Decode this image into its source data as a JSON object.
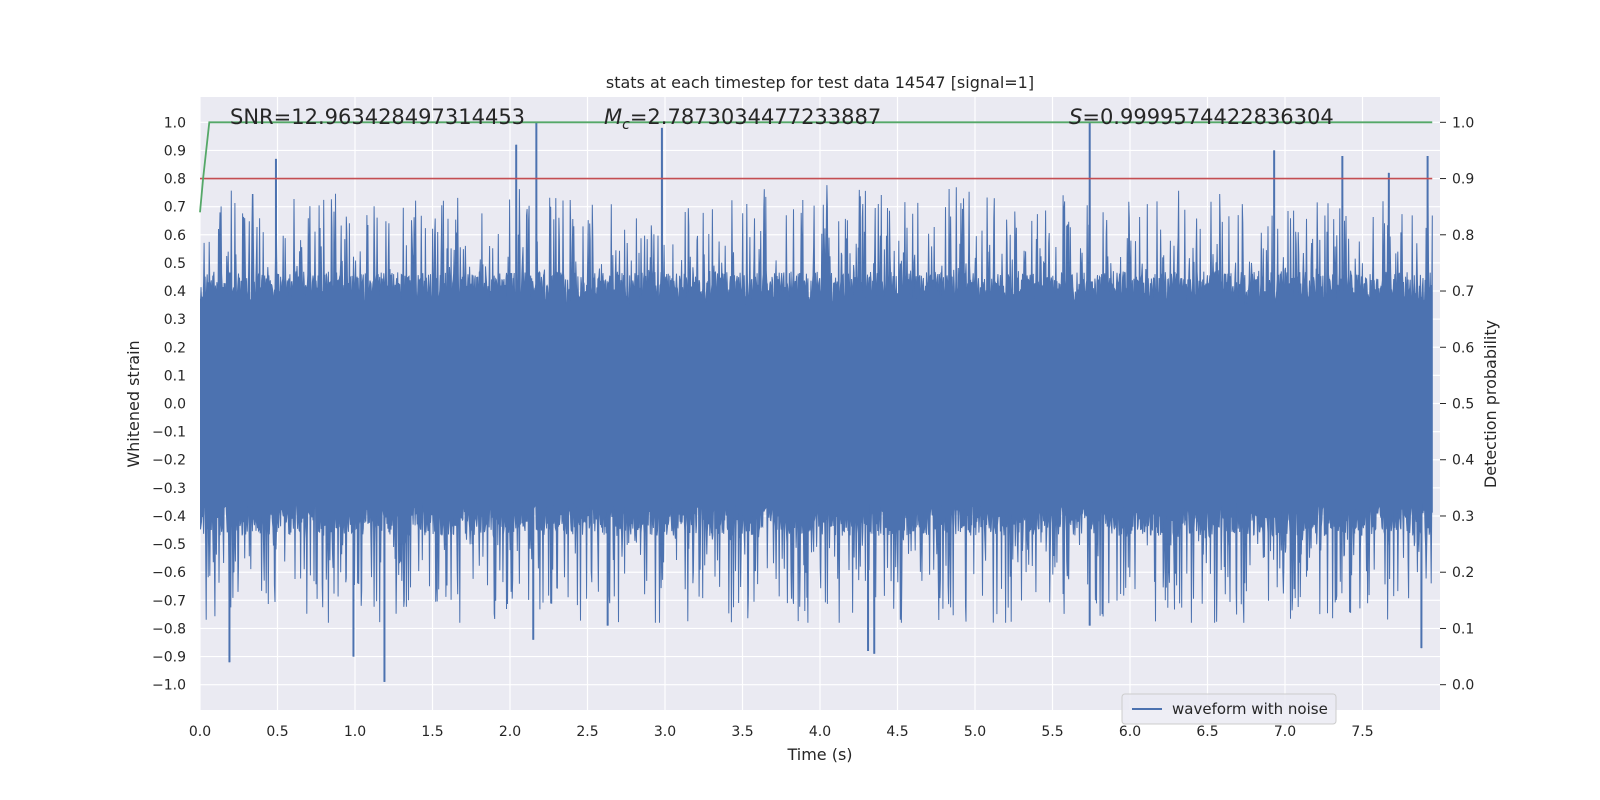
{
  "chart_data": {
    "type": "line",
    "title": "stats at each timestep for test data 14547 [signal=1]",
    "xlabel": "Time (s)",
    "ylabel": "Whitened strain",
    "y2label": "Detection probability",
    "xlim": [
      0.0,
      8.0
    ],
    "ylim": [
      -1.09,
      1.09
    ],
    "y2lim": [
      -0.045,
      1.045
    ],
    "xticks": [
      0.0,
      0.5,
      1.0,
      1.5,
      2.0,
      2.5,
      3.0,
      3.5,
      4.0,
      4.5,
      5.0,
      5.5,
      6.0,
      6.5,
      7.0,
      7.5
    ],
    "xtick_labels": [
      "0.0",
      "0.5",
      "1.0",
      "1.5",
      "2.0",
      "2.5",
      "3.0",
      "3.5",
      "4.0",
      "4.5",
      "5.0",
      "5.5",
      "6.0",
      "6.5",
      "7.0",
      "7.5"
    ],
    "yticks": [
      1.0,
      0.9,
      0.8,
      0.7,
      0.6,
      0.5,
      0.4,
      0.3,
      0.2,
      0.1,
      0.0,
      -0.1,
      -0.2,
      -0.3,
      -0.4,
      -0.5,
      -0.6,
      -0.7,
      -0.8,
      -0.9,
      -1.0
    ],
    "ytick_labels": [
      "1.0",
      "0.9",
      "0.8",
      "0.7",
      "0.6",
      "0.5",
      "0.4",
      "0.3",
      "0.2",
      "0.1",
      "0.0",
      "−0.1",
      "−0.2",
      "−0.3",
      "−0.4",
      "−0.5",
      "−0.6",
      "−0.7",
      "−0.8",
      "−0.9",
      "−1.0"
    ],
    "y2ticks": [
      1.0,
      0.9,
      0.8,
      0.7,
      0.6,
      0.5,
      0.4,
      0.3,
      0.2,
      0.1,
      0.0
    ],
    "y2tick_labels": [
      "1.0",
      "0.9",
      "0.8",
      "0.7",
      "0.6",
      "0.5",
      "0.4",
      "0.3",
      "0.2",
      "0.1",
      "0.0"
    ],
    "grid": true,
    "legend": {
      "placement": "lower-right",
      "entries": [
        "waveform with noise"
      ]
    },
    "annotations": {
      "snr": "SNR=12.963428497314453",
      "mc_symbol": "M",
      "mc_subscript": "c",
      "mc_value": "=2.7873034477233887",
      "s_symbol": "S",
      "s_value": "=0.9999574422836304"
    },
    "series": [
      {
        "name": "waveform with noise",
        "axis": "left",
        "color": "#4c72b0",
        "description": "dense noisy whitened strain, approx 8000 samples",
        "band": {
          "core_abs": 0.4,
          "typical_peak_abs": 0.6,
          "max": 1.0,
          "min": -0.99
        },
        "peaks": [
          {
            "x": 0.49,
            "y": 0.87
          },
          {
            "x": 2.04,
            "y": 0.92
          },
          {
            "x": 2.17,
            "y": 1.0
          },
          {
            "x": 2.98,
            "y": 0.98
          },
          {
            "x": 5.74,
            "y": 1.0
          },
          {
            "x": 6.93,
            "y": 0.9
          },
          {
            "x": 7.92,
            "y": 0.88
          },
          {
            "x": 7.37,
            "y": 0.88
          },
          {
            "x": 7.67,
            "y": 0.82
          },
          {
            "x": 1.19,
            "y": -0.99
          },
          {
            "x": 4.31,
            "y": -0.88
          },
          {
            "x": 4.35,
            "y": -0.89
          },
          {
            "x": 0.19,
            "y": -0.92
          },
          {
            "x": 2.15,
            "y": -0.84
          },
          {
            "x": 7.88,
            "y": -0.87
          },
          {
            "x": 5.74,
            "y": -0.79
          },
          {
            "x": 0.99,
            "y": -0.9
          },
          {
            "x": 2.63,
            "y": -0.79
          }
        ]
      },
      {
        "name": "detection probability",
        "axis": "right",
        "color": "#55a868",
        "x": [
          0.0,
          0.02,
          0.06,
          7.95
        ],
        "values": [
          0.84,
          0.9,
          1.0,
          1.0
        ]
      },
      {
        "name": "threshold",
        "axis": "left",
        "color": "#c44e52",
        "x": [
          0.0,
          7.95
        ],
        "values": [
          0.8,
          0.8
        ]
      }
    ]
  }
}
